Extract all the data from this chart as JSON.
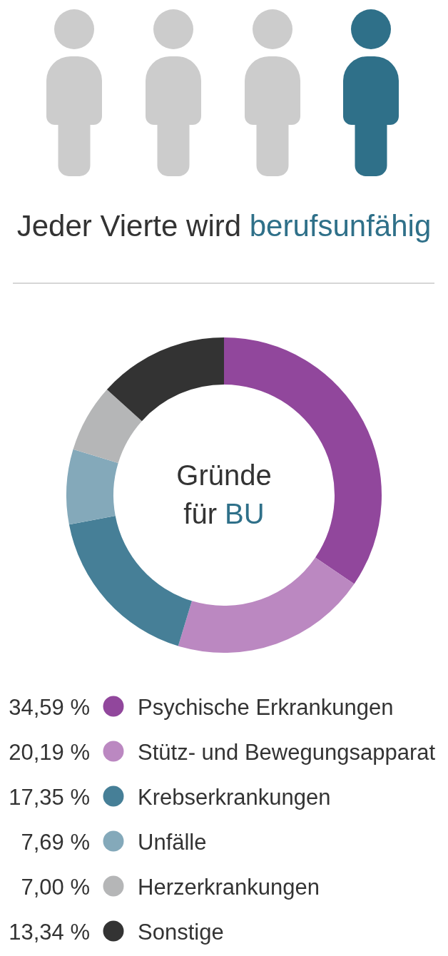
{
  "chart_data": {
    "type": "donut",
    "title": "Jeder Vierte wird berufsunfähig",
    "annotations": [
      "Gründe für BU"
    ],
    "categories": [
      "Psychische Erkrankungen",
      "Stütz- und Bewegungsapparat",
      "Krebserkrankungen",
      "Unfälle",
      "Herzerkrankungen",
      "Sonstige"
    ],
    "values": [
      34.59,
      20.19,
      17.35,
      7.69,
      7.0,
      13.34
    ],
    "colors": [
      "#91479c",
      "#bb88c1",
      "#467f97",
      "#84a9ba",
      "#b5b6b7",
      "#333333"
    ],
    "value_labels": [
      "34,59 %",
      "20,19 %",
      "17,35 %",
      "7,69 %",
      "7,00 %",
      "13,34 %"
    ],
    "legend": "bottom"
  }
}
